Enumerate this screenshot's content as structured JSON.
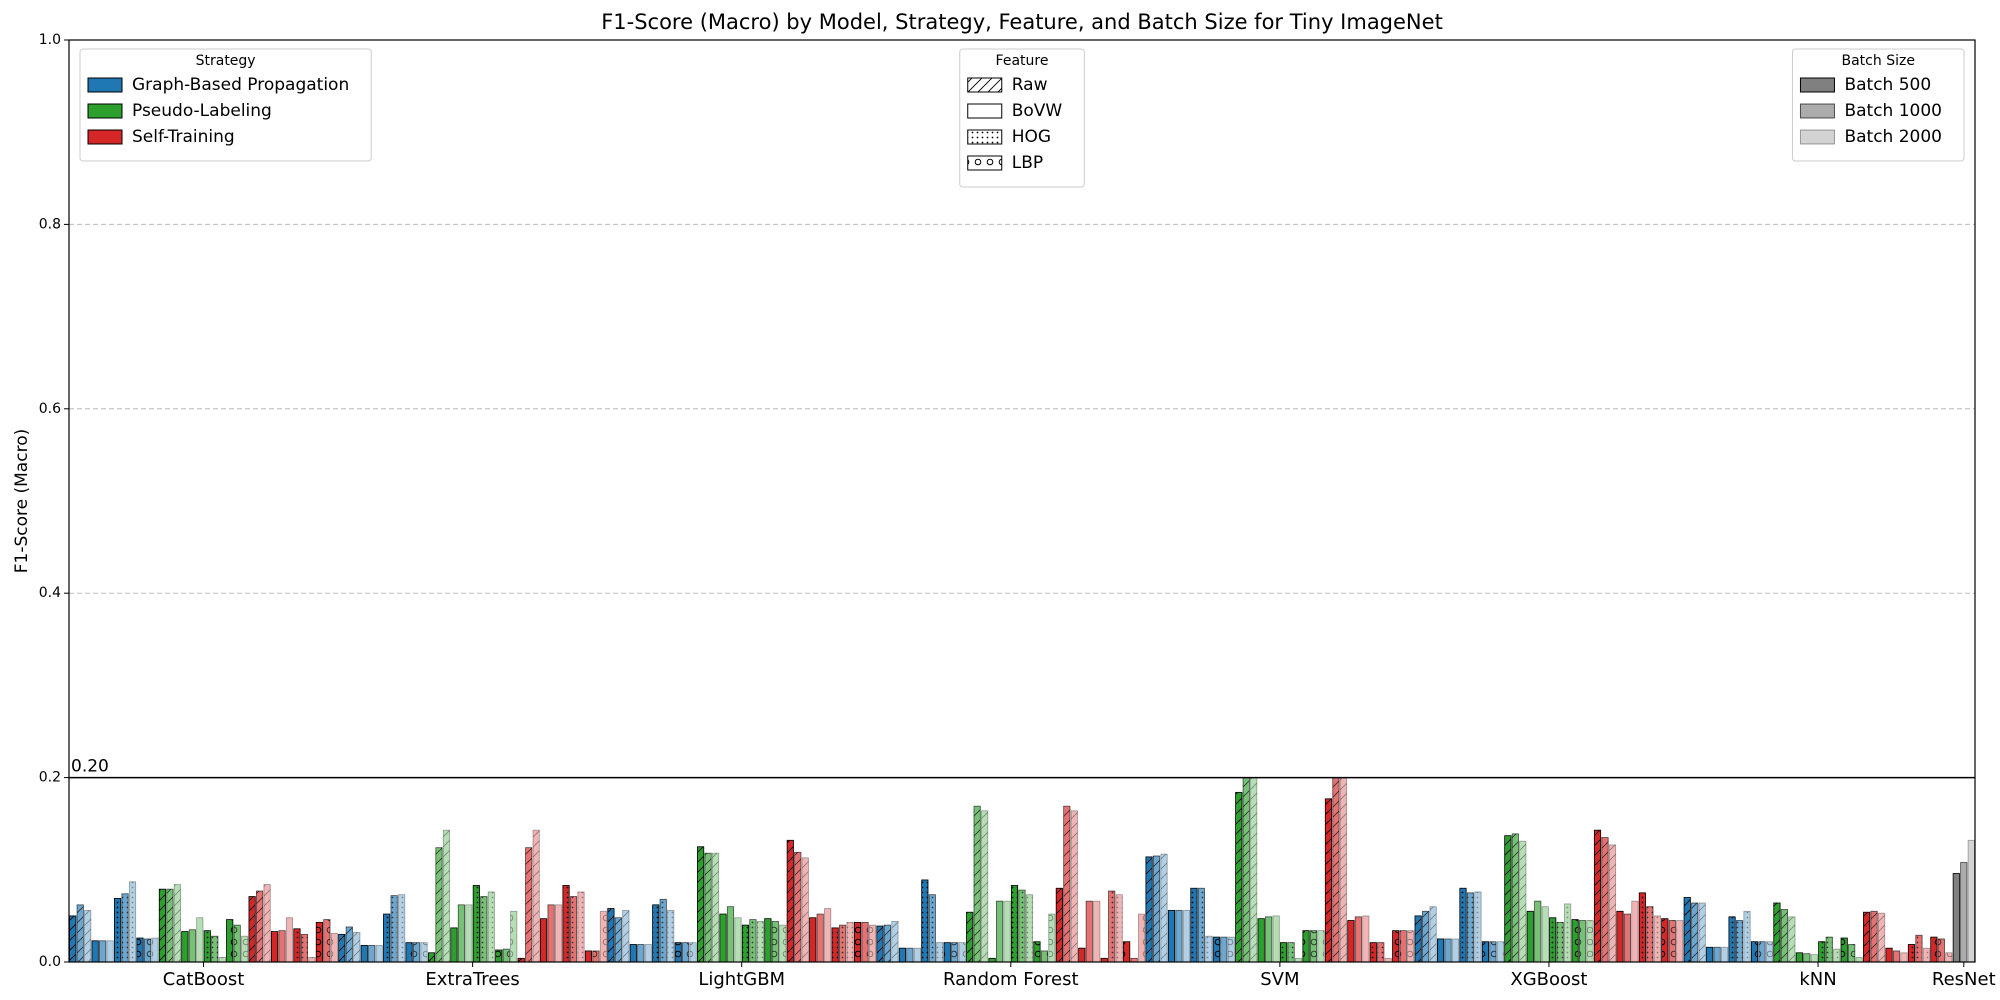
{
  "chart_data": {
    "type": "grouped-bar",
    "title": "F1-Score (Macro) by Model, Strategy, Feature, and Batch Size for Tiny ImageNet",
    "ylabel": "F1-Score (Macro)",
    "ylim": [
      0,
      1
    ],
    "yticks": [
      {
        "value": 0,
        "label": "0.0"
      },
      0.2,
      0.4,
      0.6,
      0.8,
      {
        "value": 1,
        "label": "1.0"
      }
    ],
    "grid": true,
    "hline": {
      "value": 0.2,
      "label": "0.20"
    },
    "legends": [
      {
        "title": "Strategy",
        "loc": "upper left",
        "entries": [
          {
            "name": "Graph-Based Propagation",
            "color": "#1f77b4"
          },
          {
            "name": "Pseudo-Labeling",
            "color": "#2ca02c"
          },
          {
            "name": "Self-Training",
            "color": "#d62728"
          }
        ]
      },
      {
        "title": "Feature",
        "loc": "upper center",
        "entries": [
          {
            "name": "Raw",
            "hatch": "/"
          },
          {
            "name": "BoVW",
            "hatch": "none"
          },
          {
            "name": "HOG",
            "hatch": "..."
          },
          {
            "name": "LBP",
            "hatch": "o"
          }
        ]
      },
      {
        "title": "Batch Size",
        "loc": "upper right",
        "entries": [
          {
            "name": "Batch 500",
            "alpha": 1,
            "color": "#808080"
          },
          {
            "name": "Batch 1000",
            "alpha": 0.65,
            "color": "#808080"
          },
          {
            "name": "Batch 2000",
            "alpha": 0.35,
            "color": "#808080"
          }
        ]
      }
    ],
    "groups": [
      {
        "model": "CatBoost",
        "values": [
          [
            [
              0.05,
              0.062,
              0.056
            ],
            [
              0.023,
              0.023,
              0.023
            ],
            [
              0.069,
              0.074,
              0.087
            ],
            [
              0.026,
              0.025,
              0.026
            ]
          ],
          [
            [
              0.079,
              0.079,
              0.084
            ],
            [
              0.033,
              0.035,
              0.048
            ],
            [
              0.034,
              0.028,
              0.005
            ],
            [
              0.046,
              0.04,
              0.028
            ]
          ],
          [
            [
              0.071,
              0.077,
              0.084
            ],
            [
              0.033,
              0.034,
              0.048
            ],
            [
              0.036,
              0.03,
              0.005
            ],
            [
              0.043,
              0.046,
              0.031
            ]
          ]
        ]
      },
      {
        "model": "ExtraTrees",
        "values": [
          [
            [
              0.03,
              0.038,
              0.032
            ],
            [
              0.018,
              0.018,
              0.018
            ],
            [
              0.052,
              0.072,
              0.073
            ],
            [
              0.021,
              0.021,
              0.021
            ]
          ],
          [
            [
              0.01,
              0.124,
              0.143
            ],
            [
              0.037,
              0.062,
              0.062
            ],
            [
              0.083,
              0.071,
              0.076
            ],
            [
              0.013,
              0.014,
              0.055
            ]
          ],
          [
            [
              0.004,
              0.124,
              0.143
            ],
            [
              0.047,
              0.062,
              0.062
            ],
            [
              0.083,
              0.071,
              0.076
            ],
            [
              0.012,
              0.012,
              0.055
            ]
          ]
        ]
      },
      {
        "model": "LightGBM",
        "values": [
          [
            [
              0.058,
              0.048,
              0.056
            ],
            [
              0.019,
              0.019,
              0.019
            ],
            [
              0.062,
              0.068,
              0.056
            ],
            [
              0.021,
              0.021,
              0.021
            ]
          ],
          [
            [
              0.125,
              0.118,
              0.118
            ],
            [
              0.052,
              0.06,
              0.048
            ],
            [
              0.04,
              0.046,
              0.044
            ],
            [
              0.047,
              0.044,
              0.04
            ]
          ],
          [
            [
              0.132,
              0.119,
              0.113
            ],
            [
              0.048,
              0.052,
              0.058
            ],
            [
              0.037,
              0.04,
              0.043
            ],
            [
              0.043,
              0.043,
              0.04
            ]
          ]
        ]
      },
      {
        "model": "Random Forest",
        "values": [
          [
            [
              0.039,
              0.04,
              0.044
            ],
            [
              0.015,
              0.015,
              0.015
            ],
            [
              0.089,
              0.073,
              0.021
            ],
            [
              0.021,
              0.021,
              0.021
            ]
          ],
          [
            [
              0.054,
              0.169,
              0.164
            ],
            [
              0.004,
              0.066,
              0.066
            ],
            [
              0.083,
              0.078,
              0.073
            ],
            [
              0.022,
              0.012,
              0.052
            ]
          ],
          [
            [
              0.08,
              0.169,
              0.164
            ],
            [
              0.015,
              0.066,
              0.066
            ],
            [
              0.004,
              0.077,
              0.073
            ],
            [
              0.022,
              0.004,
              0.052
            ]
          ]
        ]
      },
      {
        "model": "SVM",
        "values": [
          [
            [
              0.114,
              0.115,
              0.117
            ],
            [
              0.056,
              0.056,
              0.056
            ],
            [
              0.08,
              0.08,
              0.028
            ],
            [
              0.027,
              0.027,
              0.027
            ]
          ],
          [
            [
              0.184,
              0.2,
              0.2
            ],
            [
              0.047,
              0.049,
              0.05
            ],
            [
              0.021,
              0.021,
              0.004
            ],
            [
              0.034,
              0.034,
              0.034
            ]
          ],
          [
            [
              0.177,
              0.2,
              0.2
            ],
            [
              0.045,
              0.049,
              0.05
            ],
            [
              0.021,
              0.021,
              0.004
            ],
            [
              0.034,
              0.034,
              0.034
            ]
          ]
        ]
      },
      {
        "model": "XGBoost",
        "values": [
          [
            [
              0.05,
              0.055,
              0.06
            ],
            [
              0.025,
              0.025,
              0.025
            ],
            [
              0.08,
              0.075,
              0.076
            ],
            [
              0.022,
              0.022,
              0.022
            ]
          ],
          [
            [
              0.137,
              0.139,
              0.131
            ],
            [
              0.055,
              0.066,
              0.06
            ],
            [
              0.048,
              0.043,
              0.063
            ],
            [
              0.046,
              0.045,
              0.045
            ]
          ],
          [
            [
              0.143,
              0.135,
              0.127
            ],
            [
              0.055,
              0.052,
              0.066
            ],
            [
              0.075,
              0.06,
              0.05
            ],
            [
              0.047,
              0.045,
              0.045
            ]
          ]
        ]
      },
      {
        "model": "kNN",
        "values": [
          [
            [
              0.07,
              0.064,
              0.064
            ],
            [
              0.016,
              0.016,
              0.016
            ],
            [
              0.049,
              0.045,
              0.055
            ],
            [
              0.022,
              0.022,
              0.022
            ]
          ],
          [
            [
              0.064,
              0.057,
              0.049
            ],
            [
              0.01,
              0.009,
              0.008
            ],
            [
              0.022,
              0.027,
              0.014
            ],
            [
              0.026,
              0.019,
              0.005
            ]
          ],
          [
            [
              0.054,
              0.055,
              0.053
            ],
            [
              0.015,
              0.012,
              0.01
            ],
            [
              0.019,
              0.029,
              0.015
            ],
            [
              0.027,
              0.025,
              0.01
            ]
          ]
        ]
      },
      {
        "model": "ResNet",
        "color": "#808080",
        "values": [
          0.096,
          0.108,
          0.132
        ]
      }
    ]
  }
}
